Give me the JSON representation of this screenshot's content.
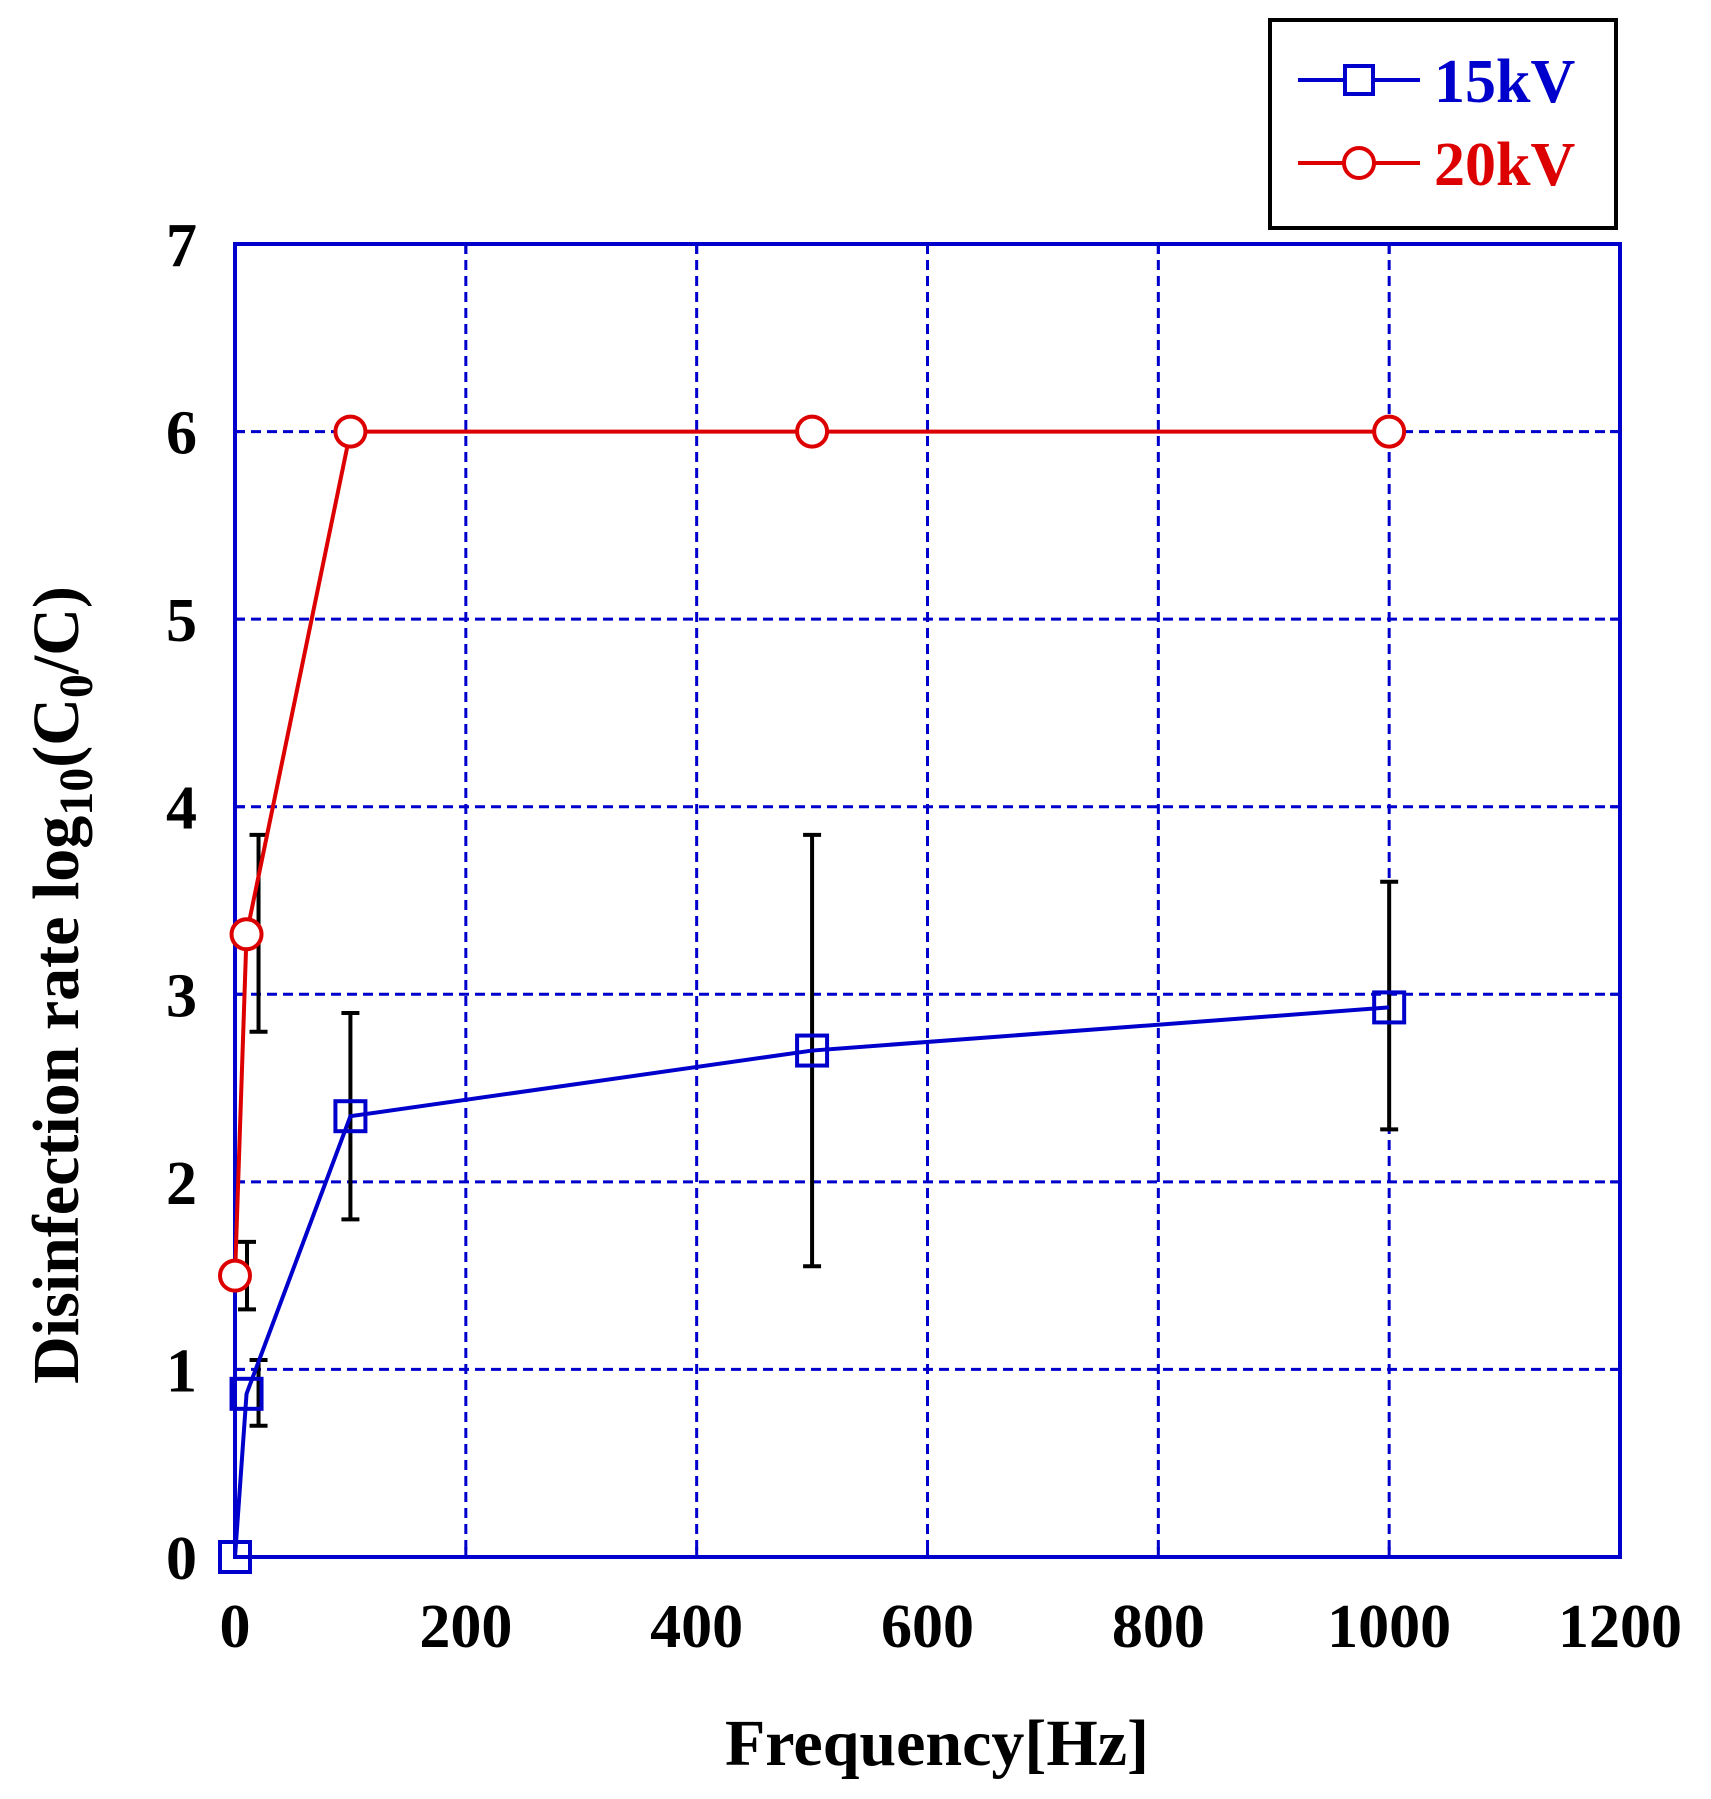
{
  "chart_data": {
    "type": "line",
    "title": "",
    "xlabel": "Frequency[Hz]",
    "ylabel": {
      "main": "Disinfection rate log",
      "sub1": "10",
      "open": "(C",
      "sub2": "0",
      "close": "/C)"
    },
    "xlim": [
      0,
      1200
    ],
    "ylim": [
      0,
      7
    ],
    "xticks": [
      0,
      200,
      400,
      600,
      800,
      1000,
      1200
    ],
    "yticks": [
      0,
      1,
      2,
      3,
      4,
      5,
      6,
      7
    ],
    "xtick_labels": [
      "0",
      "200",
      "400",
      "600",
      "800",
      "1000",
      "1200"
    ],
    "ytick_labels": [
      "0",
      "1",
      "2",
      "3",
      "4",
      "5",
      "6",
      "7"
    ],
    "grid": true,
    "legend_position": "top-right",
    "series": [
      {
        "name": "15kV",
        "color": "#0000cc",
        "marker": "square",
        "x": [
          0,
          10,
          100,
          500,
          1000
        ],
        "y": [
          0.0,
          0.87,
          2.35,
          2.7,
          2.93
        ],
        "yerr_low": [
          null,
          0.7,
          1.8,
          1.55,
          2.28
        ],
        "yerr_high": [
          null,
          1.05,
          2.9,
          3.85,
          3.6
        ]
      },
      {
        "name": "20kV",
        "color": "#dd0000",
        "marker": "circle",
        "x": [
          0,
          10,
          100,
          500,
          1000
        ],
        "y": [
          1.5,
          3.32,
          6.0,
          6.0,
          6.0
        ],
        "yerr_low": [
          1.32,
          2.8,
          null,
          null,
          null
        ],
        "yerr_high": [
          1.68,
          3.85,
          null,
          null,
          null
        ]
      }
    ]
  }
}
